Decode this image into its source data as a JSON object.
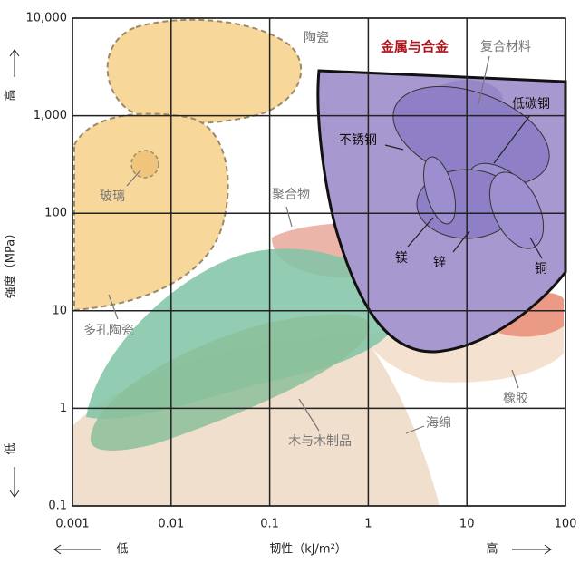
{
  "chart_data": {
    "type": "ashby",
    "x_label": "韧性（kJ/m²）",
    "y_label": "强度（MPa）",
    "x_low": "低",
    "x_high": "高",
    "y_low": "低",
    "y_high": "高",
    "log_x": true,
    "log_y": true,
    "grid": true,
    "xlim": [
      0.001,
      100
    ],
    "ylim": [
      0.1,
      10000
    ],
    "xticks": [
      0.001,
      0.01,
      0.1,
      1,
      10,
      100
    ],
    "yticks": [
      0.1,
      1,
      10,
      100,
      {
        "value": 1000,
        "label": "1,000"
      },
      {
        "value": 10000,
        "label": "10,000"
      }
    ],
    "regions": [
      "陶瓷",
      "金属与合金",
      "复合材料",
      "低碳钢",
      "不锈钢",
      "玻璃",
      "聚合物",
      "镁",
      "锌",
      "铜",
      "多孔陶瓷",
      "橡胶",
      "海绵",
      "木与木制品"
    ]
  }
}
